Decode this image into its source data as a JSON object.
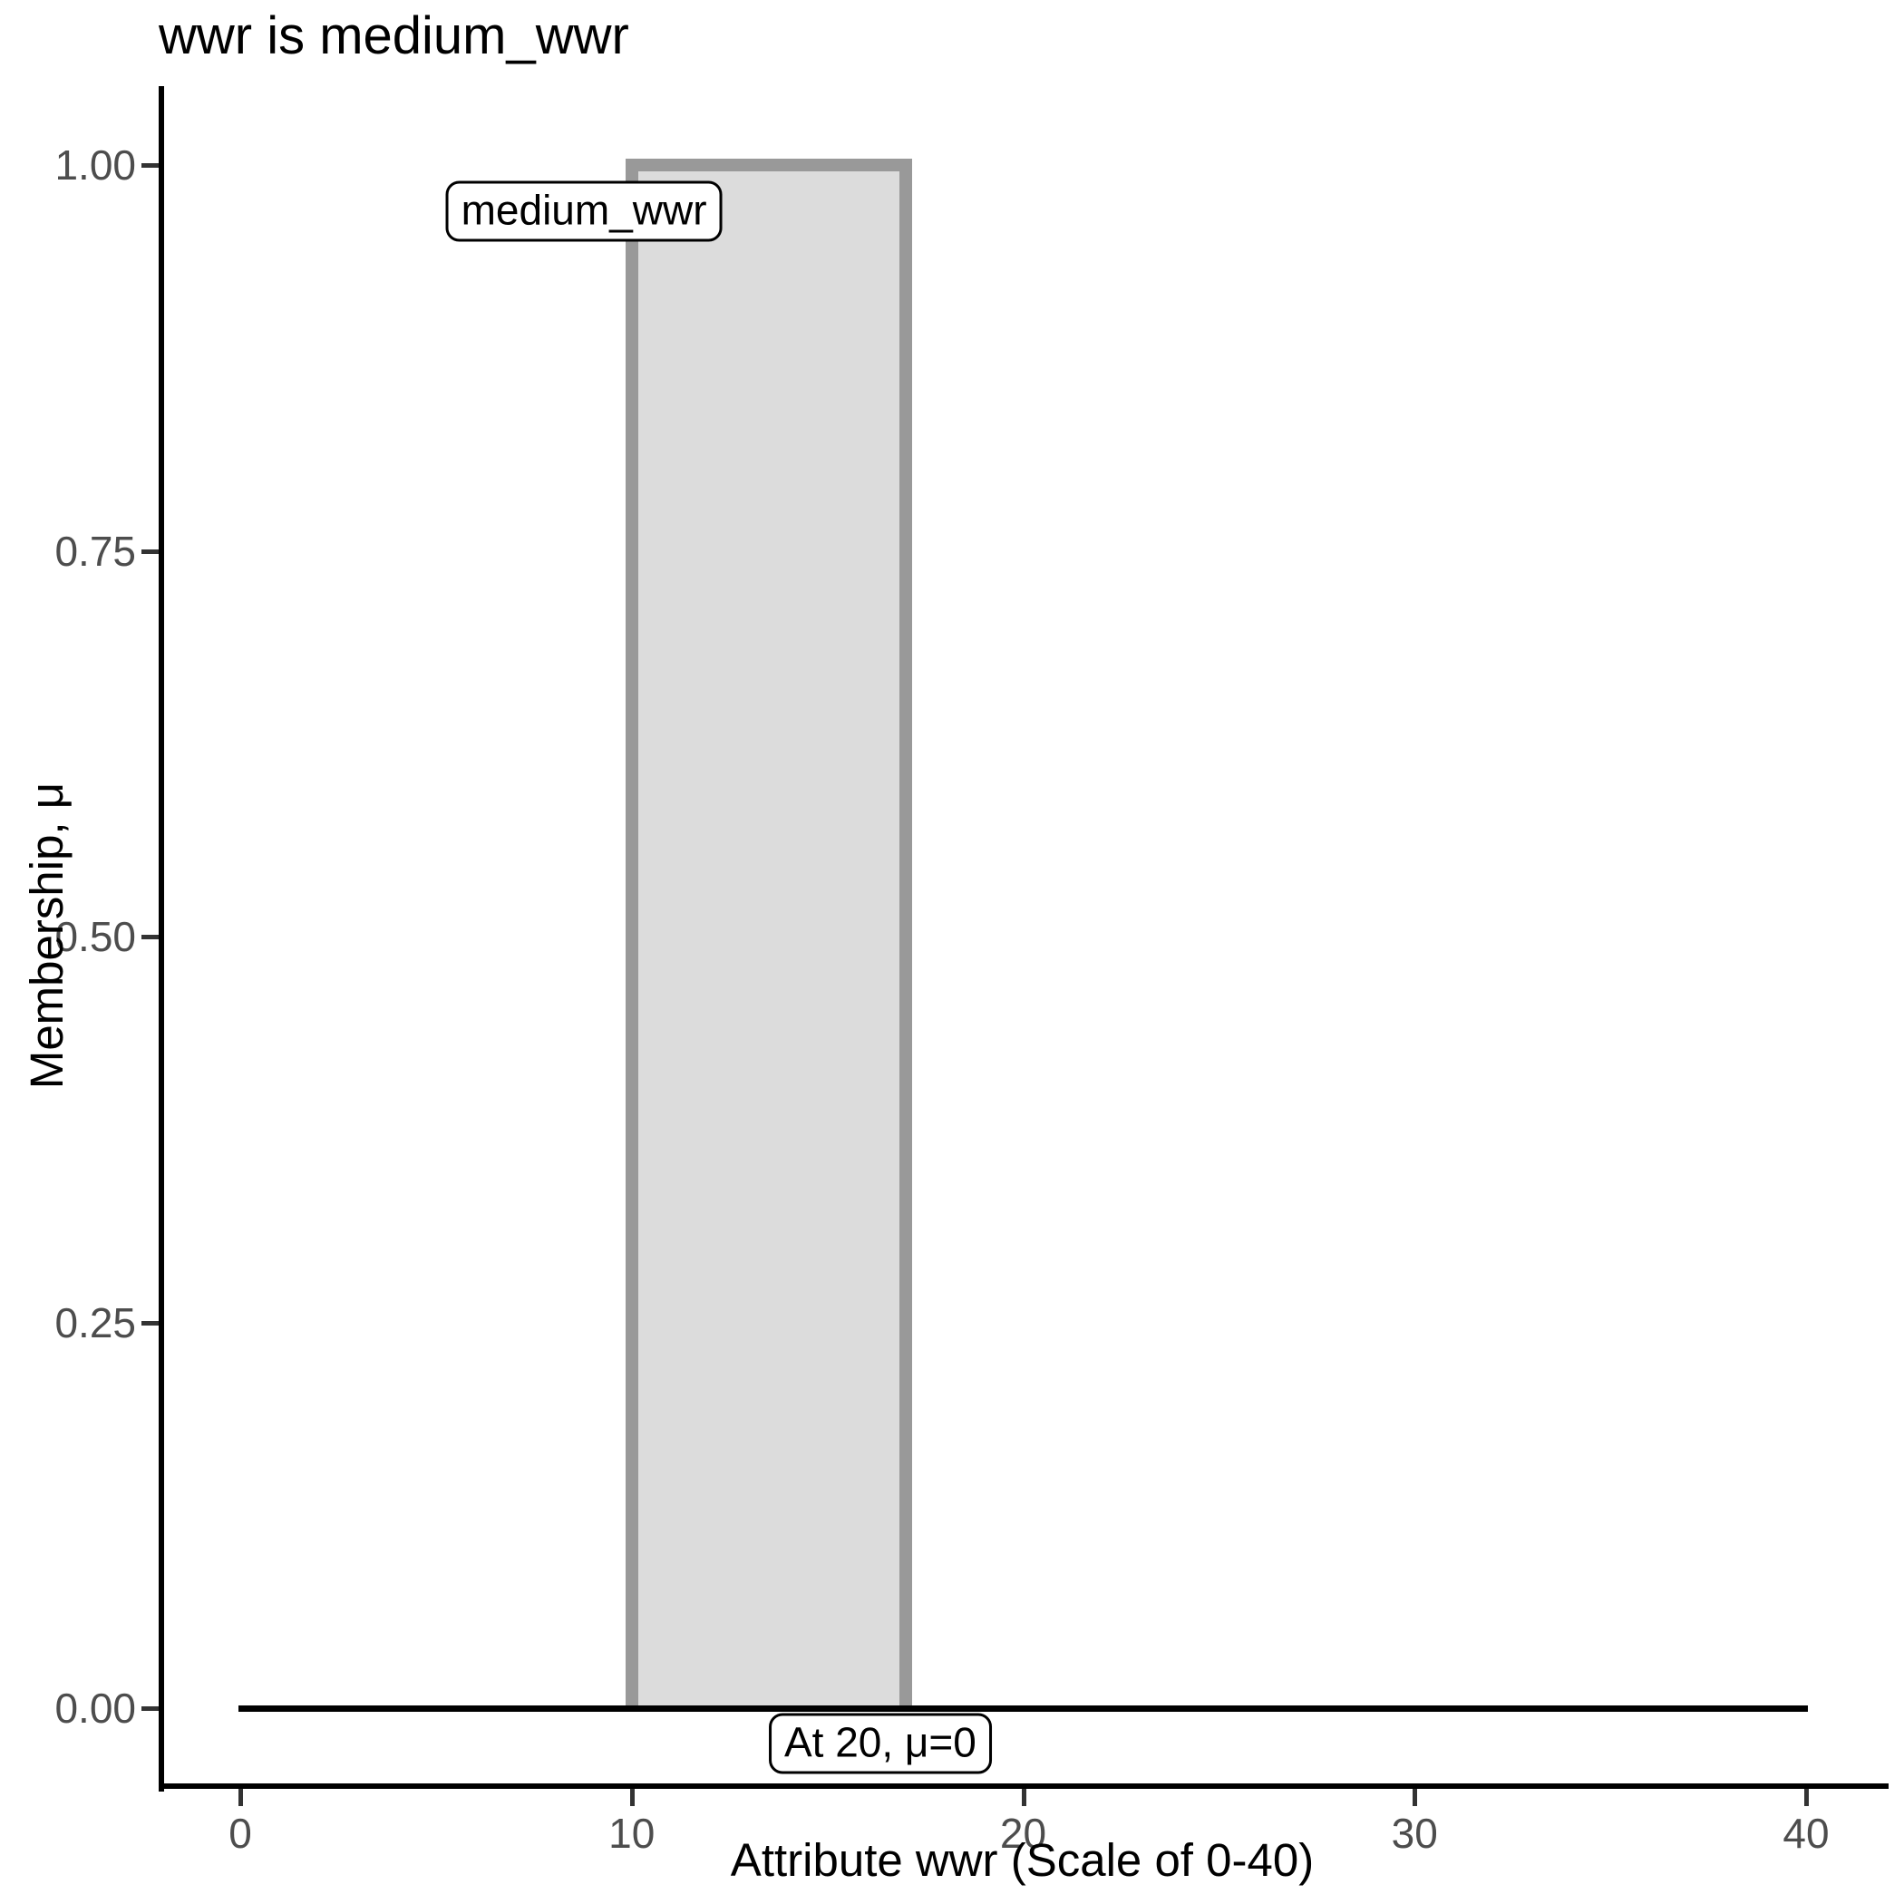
{
  "title": "wwr is medium_wwr",
  "chart_data": {
    "type": "area",
    "title": "wwr is medium_wwr",
    "xlabel": "Attribute wwr (Scale of 0-40)",
    "ylabel": "Membership, μ",
    "xlim": [
      0,
      40
    ],
    "ylim": [
      0,
      1
    ],
    "grid": false,
    "legend": false,
    "x_ticks": [
      0,
      10,
      20,
      30,
      40
    ],
    "x_tick_labels": [
      "0",
      "10",
      "20",
      "30",
      "40"
    ],
    "y_ticks": [
      0,
      0.25,
      0.5,
      0.75,
      1
    ],
    "y_tick_labels": [
      "0.00",
      "0.25",
      "0.50",
      "0.75",
      "1.00"
    ],
    "series": [
      {
        "name": "medium_wwr",
        "kind": "fuzzy-set-rectangle",
        "x_from": 10,
        "x_to": 17,
        "mu_base": 0,
        "mu_top": 1,
        "fill": "#DCDCDC",
        "stroke": "#999999"
      },
      {
        "name": "zero-membership-line",
        "kind": "line",
        "x_from": 0,
        "x_to": 40,
        "mu": 0,
        "color": "#000000"
      }
    ],
    "annotations": [
      {
        "text": "medium_wwr",
        "x": 8.78,
        "mu": 0.97
      },
      {
        "text": "At 20, μ=0",
        "x": 16.35,
        "mu": -0.023
      }
    ]
  },
  "colors": {
    "axis_text": "#4D4D4D",
    "axis_line": "#000000",
    "title_text": "#000000",
    "bar_fill": "#DCDCDC",
    "bar_stroke": "#999999",
    "zero_line": "#000000",
    "label_box_bg": "#FFFFFF",
    "label_box_border": "#000000"
  }
}
